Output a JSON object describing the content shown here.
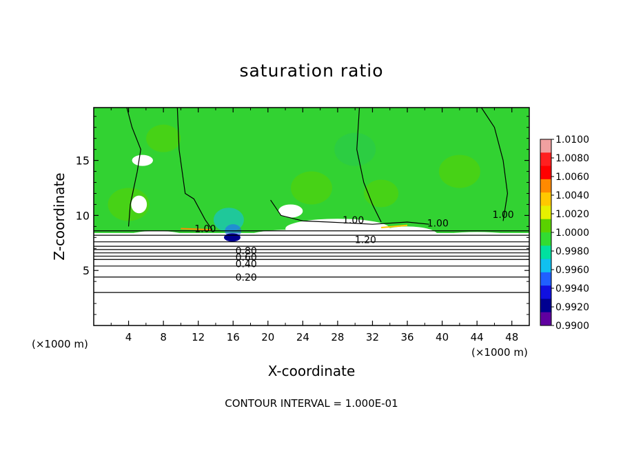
{
  "chart_data": {
    "type": "heatmap",
    "title": "saturation ratio",
    "xlabel": "X-coordinate",
    "ylabel": "Z-coordinate",
    "x_unit_label": "(×1000 m)",
    "x_ticks": [
      4,
      8,
      12,
      16,
      20,
      24,
      28,
      32,
      36,
      40,
      44,
      48
    ],
    "xlim": [
      0,
      50
    ],
    "y_ticks": [
      5,
      10,
      15
    ],
    "ylim": [
      0,
      19.8
    ],
    "colorbar": {
      "ticks": [
        "1.0100",
        "1.0080",
        "1.0060",
        "1.0040",
        "1.0020",
        "1.0000",
        "0.9980",
        "0.9960",
        "0.9940",
        "0.9920",
        "0.9900"
      ],
      "colors": [
        "#f0a0a0",
        "#ff2020",
        "#ff0000",
        "#ff8a00",
        "#ffc800",
        "#e6f000",
        "#5ad200",
        "#32dc32",
        "#00e0a0",
        "#10c0f0",
        "#2060ff",
        "#1010e0",
        "#000090",
        "#6000a0"
      ]
    },
    "contour_labels": [
      {
        "text": "1.00",
        "x": 12.8,
        "y": 8.8
      },
      {
        "text": "1.00",
        "x": 29.8,
        "y": 9.6
      },
      {
        "text": "1.20",
        "x": 31.2,
        "y": 7.8
      },
      {
        "text": "1.00",
        "x": 39.5,
        "y": 9.3
      },
      {
        "text": "1.00",
        "x": 47.0,
        "y": 10.1
      },
      {
        "text": "0.80",
        "x": 17.5,
        "y": 6.8
      },
      {
        "text": "0.60",
        "x": 17.5,
        "y": 6.2
      },
      {
        "text": "0.40",
        "x": 17.5,
        "y": 5.6
      },
      {
        "text": "0.20",
        "x": 17.5,
        "y": 4.4
      }
    ],
    "contour_interval_text": "CONTOUR INTERVAL = 1.000E-01"
  }
}
